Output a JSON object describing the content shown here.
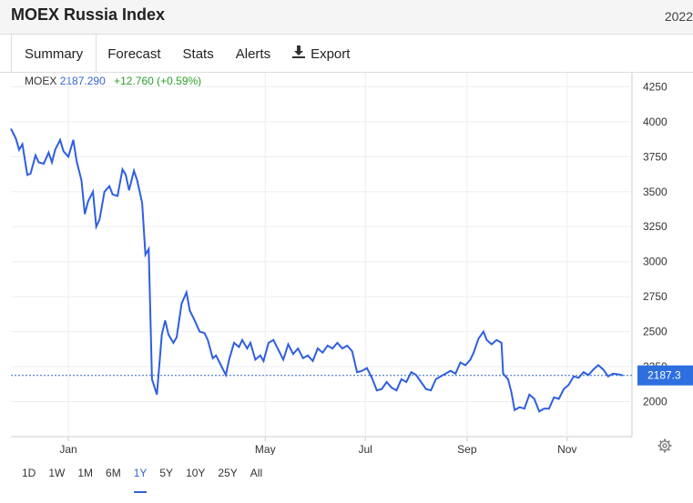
{
  "header": {
    "title": "MOEX Russia Index",
    "year": "2022"
  },
  "tabs": [
    {
      "label": "Summary",
      "active": true
    },
    {
      "label": "Forecast"
    },
    {
      "label": "Stats"
    },
    {
      "label": "Alerts"
    },
    {
      "label": "Export",
      "icon": "download-icon"
    }
  ],
  "legend": {
    "symbol": "MOEX",
    "value": "2187.290",
    "change": "+12.760 (+0.59%)"
  },
  "current_price_label": "2187.3",
  "colors": {
    "line": "#2e5fe0",
    "accent": "#3366cc",
    "positive": "#2ca02c",
    "badge": "#2e6fe0"
  },
  "ranges": [
    "1D",
    "1W",
    "1M",
    "6M",
    "1Y",
    "5Y",
    "10Y",
    "25Y",
    "All"
  ],
  "active_range": "1Y",
  "settings_icon": "gear-icon",
  "chart_data": {
    "type": "line",
    "title": "",
    "xlabel": "",
    "ylabel": "",
    "ylim": [
      1750,
      4350
    ],
    "yticks": [
      2000,
      2250,
      2500,
      2750,
      3000,
      3250,
      3500,
      3750,
      4000,
      4250
    ],
    "xtick_labels": [
      "Jan",
      "May",
      "Jul",
      "Sep",
      "Nov"
    ],
    "grid": true,
    "series": [
      {
        "name": "MOEX",
        "points": [
          [
            "2021-11-27",
            3950
          ],
          [
            "2021-11-30",
            3880
          ],
          [
            "2021-12-02",
            3800
          ],
          [
            "2021-12-04",
            3840
          ],
          [
            "2021-12-07",
            3620
          ],
          [
            "2021-12-09",
            3630
          ],
          [
            "2021-12-12",
            3760
          ],
          [
            "2021-12-14",
            3710
          ],
          [
            "2021-12-17",
            3700
          ],
          [
            "2021-12-20",
            3780
          ],
          [
            "2021-12-22",
            3710
          ],
          [
            "2021-12-24",
            3800
          ],
          [
            "2021-12-27",
            3870
          ],
          [
            "2021-12-29",
            3790
          ],
          [
            "2022-01-01",
            3750
          ],
          [
            "2022-01-04",
            3870
          ],
          [
            "2022-01-06",
            3720
          ],
          [
            "2022-01-09",
            3580
          ],
          [
            "2022-01-11",
            3340
          ],
          [
            "2022-01-13",
            3430
          ],
          [
            "2022-01-16",
            3500
          ],
          [
            "2022-01-18",
            3250
          ],
          [
            "2022-01-20",
            3300
          ],
          [
            "2022-01-23",
            3500
          ],
          [
            "2022-01-26",
            3540
          ],
          [
            "2022-01-28",
            3480
          ],
          [
            "2022-01-31",
            3470
          ],
          [
            "2022-02-03",
            3660
          ],
          [
            "2022-02-05",
            3620
          ],
          [
            "2022-02-07",
            3510
          ],
          [
            "2022-02-10",
            3650
          ],
          [
            "2022-02-12",
            3580
          ],
          [
            "2022-02-15",
            3420
          ],
          [
            "2022-02-17",
            3050
          ],
          [
            "2022-02-19",
            3090
          ],
          [
            "2022-02-21",
            2160
          ],
          [
            "2022-02-24",
            2050
          ],
          [
            "2022-02-27",
            2480
          ],
          [
            "2022-03-01",
            2580
          ],
          [
            "2022-03-03",
            2480
          ],
          [
            "2022-03-06",
            2420
          ],
          [
            "2022-03-08",
            2460
          ],
          [
            "2022-03-11",
            2700
          ],
          [
            "2022-03-14",
            2780
          ],
          [
            "2022-03-16",
            2650
          ],
          [
            "2022-03-19",
            2580
          ],
          [
            "2022-03-22",
            2500
          ],
          [
            "2022-03-25",
            2490
          ],
          [
            "2022-03-27",
            2440
          ],
          [
            "2022-03-30",
            2310
          ],
          [
            "2022-04-01",
            2330
          ],
          [
            "2022-04-04",
            2260
          ],
          [
            "2022-04-07",
            2190
          ],
          [
            "2022-04-09",
            2300
          ],
          [
            "2022-04-12",
            2420
          ],
          [
            "2022-04-15",
            2390
          ],
          [
            "2022-04-17",
            2440
          ],
          [
            "2022-04-20",
            2380
          ],
          [
            "2022-04-22",
            2420
          ],
          [
            "2022-04-25",
            2300
          ],
          [
            "2022-04-28",
            2330
          ],
          [
            "2022-04-30",
            2290
          ],
          [
            "2022-05-03",
            2420
          ],
          [
            "2022-05-06",
            2440
          ],
          [
            "2022-05-09",
            2370
          ],
          [
            "2022-05-12",
            2300
          ],
          [
            "2022-05-15",
            2410
          ],
          [
            "2022-05-18",
            2340
          ],
          [
            "2022-05-21",
            2380
          ],
          [
            "2022-05-24",
            2310
          ],
          [
            "2022-05-27",
            2330
          ],
          [
            "2022-05-30",
            2290
          ],
          [
            "2022-06-02",
            2380
          ],
          [
            "2022-06-05",
            2350
          ],
          [
            "2022-06-08",
            2400
          ],
          [
            "2022-06-11",
            2380
          ],
          [
            "2022-06-14",
            2420
          ],
          [
            "2022-06-17",
            2380
          ],
          [
            "2022-06-20",
            2400
          ],
          [
            "2022-06-23",
            2360
          ],
          [
            "2022-06-26",
            2210
          ],
          [
            "2022-06-29",
            2220
          ],
          [
            "2022-07-02",
            2240
          ],
          [
            "2022-07-05",
            2170
          ],
          [
            "2022-07-08",
            2080
          ],
          [
            "2022-07-11",
            2090
          ],
          [
            "2022-07-14",
            2140
          ],
          [
            "2022-07-17",
            2100
          ],
          [
            "2022-07-20",
            2080
          ],
          [
            "2022-07-23",
            2160
          ],
          [
            "2022-07-26",
            2140
          ],
          [
            "2022-07-29",
            2210
          ],
          [
            "2022-08-01",
            2190
          ],
          [
            "2022-08-04",
            2140
          ],
          [
            "2022-08-07",
            2090
          ],
          [
            "2022-08-10",
            2080
          ],
          [
            "2022-08-13",
            2160
          ],
          [
            "2022-08-16",
            2180
          ],
          [
            "2022-08-19",
            2200
          ],
          [
            "2022-08-22",
            2220
          ],
          [
            "2022-08-25",
            2200
          ],
          [
            "2022-08-28",
            2280
          ],
          [
            "2022-08-31",
            2260
          ],
          [
            "2022-09-03",
            2300
          ],
          [
            "2022-09-05",
            2350
          ],
          [
            "2022-09-08",
            2450
          ],
          [
            "2022-09-11",
            2500
          ],
          [
            "2022-09-13",
            2440
          ],
          [
            "2022-09-16",
            2410
          ],
          [
            "2022-09-19",
            2440
          ],
          [
            "2022-09-22",
            2420
          ],
          [
            "2022-09-23",
            2200
          ],
          [
            "2022-09-26",
            2160
          ],
          [
            "2022-09-28",
            2070
          ],
          [
            "2022-09-30",
            1940
          ],
          [
            "2022-10-03",
            1960
          ],
          [
            "2022-10-06",
            1950
          ],
          [
            "2022-10-09",
            2050
          ],
          [
            "2022-10-12",
            2020
          ],
          [
            "2022-10-15",
            1930
          ],
          [
            "2022-10-18",
            1950
          ],
          [
            "2022-10-21",
            1950
          ],
          [
            "2022-10-24",
            2030
          ],
          [
            "2022-10-27",
            2020
          ],
          [
            "2022-10-30",
            2090
          ],
          [
            "2022-11-02",
            2120
          ],
          [
            "2022-11-05",
            2180
          ],
          [
            "2022-11-08",
            2170
          ],
          [
            "2022-11-11",
            2210
          ],
          [
            "2022-11-14",
            2190
          ],
          [
            "2022-11-17",
            2230
          ],
          [
            "2022-11-20",
            2260
          ],
          [
            "2022-11-23",
            2230
          ],
          [
            "2022-11-26",
            2180
          ],
          [
            "2022-11-29",
            2200
          ],
          [
            "2022-12-02",
            2195
          ],
          [
            "2022-12-05",
            2187.29
          ]
        ]
      }
    ]
  }
}
